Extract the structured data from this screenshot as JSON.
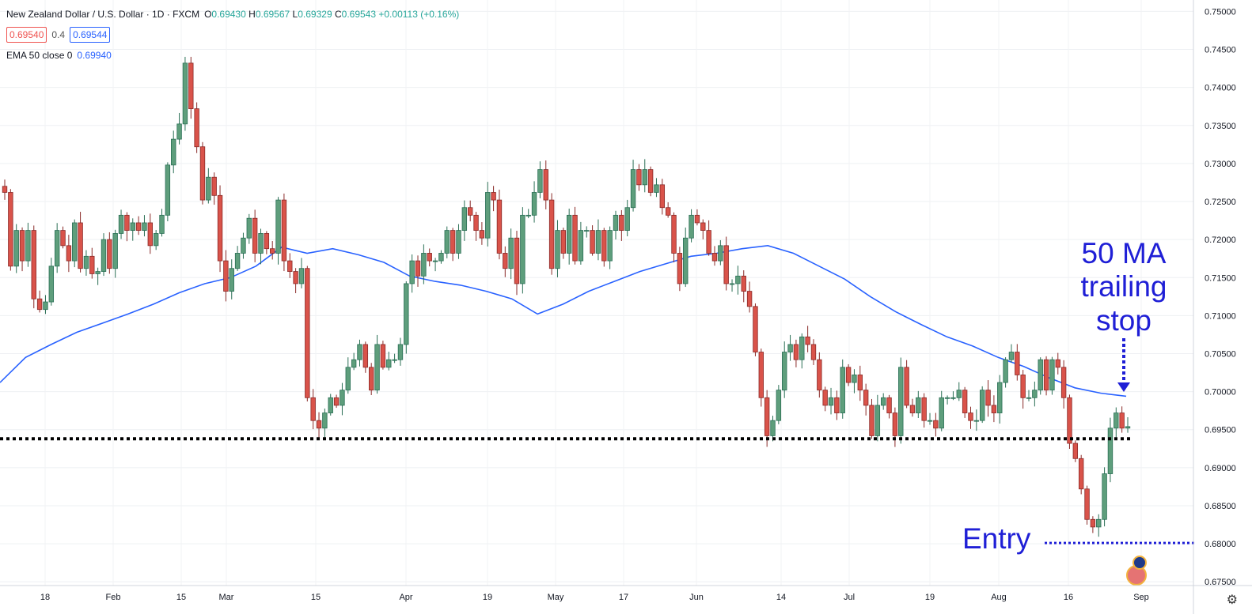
{
  "legend": {
    "title": "New Zealand Dollar / U.S. Dollar · 1D · FXCM",
    "o_label": "O",
    "o": "0.69430",
    "h_label": "H",
    "h": "0.69567",
    "l_label": "L",
    "l": "0.69329",
    "c_label": "C",
    "c": "0.69543",
    "change": "+0.00113 (+0.16%)",
    "bid": "0.69540",
    "spread": "0.4",
    "ask": "0.69544",
    "ema_label": "EMA 50 close 0",
    "ema_value": "0.69940"
  },
  "annotations": {
    "ma_line1": "50 MA",
    "ma_line2": "trailing",
    "ma_line3": "stop",
    "entry": "Entry"
  },
  "colors": {
    "up": "#26a69a",
    "down": "#ef5350",
    "ema": "#2962ff",
    "annotation": "#1f1fd6",
    "level": "#000000"
  },
  "icons": {
    "settings": "gear-icon",
    "flag": "flag-icon"
  },
  "chart_data": {
    "type": "candlestick",
    "symbol": "NZDUSD",
    "interval": "1D",
    "x_tick_labels": [
      "18",
      "Feb",
      "15",
      "Mar",
      "15",
      "Apr",
      "19",
      "May",
      "17",
      "Jun",
      "14",
      "Jul",
      "19",
      "Aug",
      "16",
      "Sep"
    ],
    "y_tick_labels": [
      "0.75000",
      "0.74500",
      "0.74000",
      "0.73500",
      "0.73000",
      "0.72500",
      "0.72000",
      "0.71500",
      "0.71000",
      "0.70500",
      "0.70000",
      "0.69500",
      "0.69000",
      "0.68500",
      "0.68000",
      "0.67500"
    ],
    "ylim": [
      0.6745,
      0.7515
    ],
    "support_level": 0.6938,
    "entry_level": 0.6801,
    "ema_period": 50,
    "ema_last": 0.6994,
    "closes": [
      0.7262,
      0.7165,
      0.7212,
      0.7172,
      0.7212,
      0.7122,
      0.7108,
      0.7118,
      0.7165,
      0.7212,
      0.7192,
      0.7172,
      0.7222,
      0.7162,
      0.7178,
      0.7155,
      0.7158,
      0.72,
      0.7162,
      0.7208,
      0.7232,
      0.7212,
      0.7222,
      0.7212,
      0.7222,
      0.7192,
      0.7208,
      0.7232,
      0.7298,
      0.7332,
      0.7352,
      0.7432,
      0.7372,
      0.7322,
      0.7252,
      0.7282,
      0.7258,
      0.7172,
      0.7132,
      0.7162,
      0.7182,
      0.7202,
      0.7228,
      0.7182,
      0.7208,
      0.7188,
      0.7182,
      0.7252,
      0.7172,
      0.7158,
      0.7142,
      0.7162,
      0.6992,
      0.6962,
      0.6952,
      0.6972,
      0.6992,
      0.6982,
      0.7002,
      0.7032,
      0.7042,
      0.7062,
      0.7032,
      0.7002,
      0.7062,
      0.7032,
      0.7042,
      0.7042,
      0.7062,
      0.7142,
      0.7172,
      0.7152,
      0.7182,
      0.7172,
      0.7172,
      0.7182,
      0.7212,
      0.7182,
      0.7212,
      0.7242,
      0.7232,
      0.7212,
      0.7202,
      0.7262,
      0.7252,
      0.7182,
      0.7162,
      0.7202,
      0.7142,
      0.7232,
      0.7232,
      0.7262,
      0.7292,
      0.7252,
      0.7162,
      0.7212,
      0.7182,
      0.7232,
      0.7172,
      0.7212,
      0.7212,
      0.7182,
      0.7212,
      0.7172,
      0.7212,
      0.7232,
      0.7212,
      0.7242,
      0.7292,
      0.7272,
      0.7292,
      0.7262,
      0.7272,
      0.7242,
      0.7232,
      0.7182,
      0.7142,
      0.7202,
      0.7232,
      0.7222,
      0.7212,
      0.7182,
      0.7172,
      0.7192,
      0.7142,
      0.7142,
      0.7152,
      0.7132,
      0.7112,
      0.7052,
      0.6992,
      0.6942,
      0.6962,
      0.7002,
      0.7052,
      0.7062,
      0.7042,
      0.7072,
      0.7062,
      0.7042,
      0.7002,
      0.6982,
      0.6992,
      0.6972,
      0.7032,
      0.7012,
      0.7022,
      0.7002,
      0.6982,
      0.6942,
      0.6982,
      0.6992,
      0.6972,
      0.6942,
      0.7032,
      0.6982,
      0.6972,
      0.6992,
      0.6962,
      0.6962,
      0.6952,
      0.6992,
      0.6992,
      0.6992,
      0.7002,
      0.6972,
      0.6962,
      0.6962,
      0.7002,
      0.6982,
      0.6972,
      0.7012,
      0.7042,
      0.7052,
      0.7022,
      0.6992,
      0.6992,
      0.7002,
      0.7042,
      0.7002,
      0.7042,
      0.7032,
      0.6992,
      0.6932,
      0.6912,
      0.6872,
      0.6832,
      0.6822,
      0.6832,
      0.6892,
      0.6952,
      0.6972,
      0.6952,
      0.6954
    ],
    "ema_values": [
      0.7012,
      0.7045,
      0.7062,
      0.7078,
      0.709,
      0.7102,
      0.7115,
      0.713,
      0.7142,
      0.715,
      0.7165,
      0.719,
      0.7182,
      0.7188,
      0.718,
      0.717,
      0.7152,
      0.7145,
      0.714,
      0.7132,
      0.7122,
      0.7102,
      0.7115,
      0.7132,
      0.7145,
      0.7158,
      0.7168,
      0.7178,
      0.7182,
      0.7188,
      0.7192,
      0.7182,
      0.7165,
      0.7148,
      0.7125,
      0.7105,
      0.7088,
      0.7072,
      0.706,
      0.7045,
      0.7033,
      0.7018,
      0.7005,
      0.6998,
      0.6994
    ]
  }
}
